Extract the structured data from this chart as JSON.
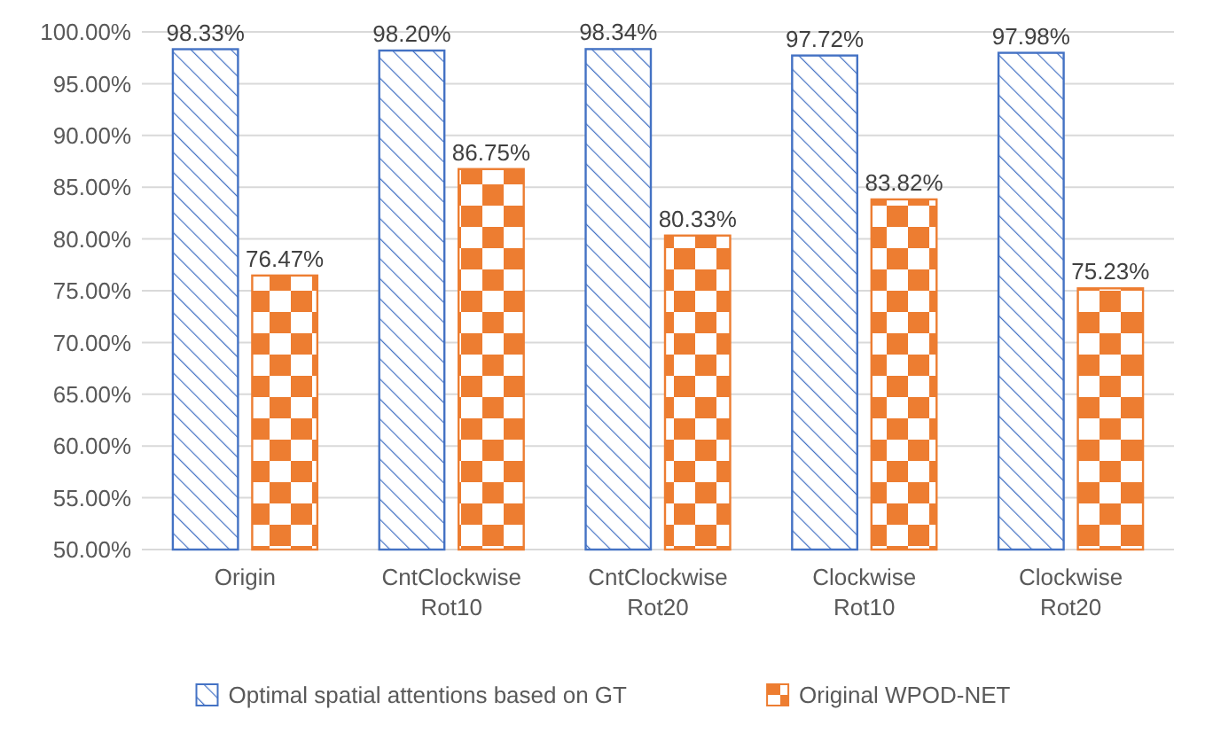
{
  "chart_data": {
    "type": "bar",
    "categories": [
      "Origin",
      "CntClockwise Rot10",
      "CntClockwise Rot20",
      "Clockwise Rot10",
      "Clockwise Rot20"
    ],
    "series": [
      {
        "name": "Optimal spatial attentions based on GT",
        "color": "#4472c4",
        "values": [
          98.33,
          98.2,
          98.34,
          97.72,
          97.98
        ],
        "value_labels": [
          "98.33%",
          "98.20%",
          "98.34%",
          "97.72%",
          "97.98%"
        ]
      },
      {
        "name": "Original WPOD-NET",
        "color": "#ed7d31",
        "values": [
          76.47,
          86.75,
          80.33,
          83.82,
          75.23
        ],
        "value_labels": [
          "76.47%",
          "86.75%",
          "80.33%",
          "83.82%",
          "75.23%"
        ]
      }
    ],
    "ylim": [
      50,
      100
    ],
    "yticks": [
      {
        "value": 50,
        "label": "50.00%"
      },
      {
        "value": 55,
        "label": "55.00%"
      },
      {
        "value": 60,
        "label": "60.00%"
      },
      {
        "value": 65,
        "label": "65.00%"
      },
      {
        "value": 70,
        "label": "70.00%"
      },
      {
        "value": 75,
        "label": "75.00%"
      },
      {
        "value": 80,
        "label": "80.00%"
      },
      {
        "value": 85,
        "label": "85.00%"
      },
      {
        "value": 90,
        "label": "90.00%"
      },
      {
        "value": 95,
        "label": "95.00%"
      },
      {
        "value": 100,
        "label": "100.00%"
      }
    ],
    "grid": "y",
    "legend": "bottom"
  }
}
